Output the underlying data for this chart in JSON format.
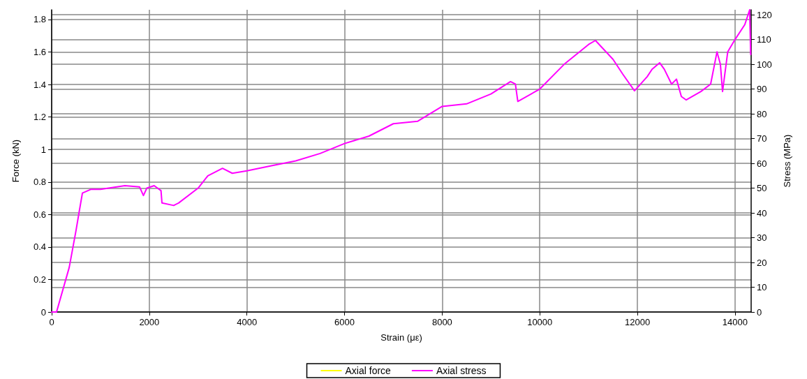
{
  "chart_data": {
    "type": "line",
    "xlabel": "Strain (με)",
    "ylabel": "Force (kN)",
    "y2label": "Stress (MPa)",
    "xlim": [
      0,
      14330
    ],
    "xticks": [
      0,
      2000,
      4000,
      6000,
      8000,
      10000,
      12000,
      14000
    ],
    "ylim": [
      0,
      1.86
    ],
    "yticks": [
      0,
      0.2,
      0.4,
      0.6,
      0.8,
      1,
      1.2,
      1.4,
      1.6,
      1.8
    ],
    "y2lim": [
      0,
      122
    ],
    "y2ticks": [
      0,
      10,
      20,
      30,
      40,
      50,
      60,
      70,
      80,
      90,
      100,
      110,
      120
    ],
    "grid": true,
    "legend": "bottom",
    "marker": "none",
    "line_style": "solid",
    "series": [
      {
        "name": "Axial force",
        "color": "#ffff00"
      },
      {
        "name": "Axial stress",
        "color": "#ff00ff",
        "axis": "y2",
        "x": [
          0,
          100,
          360,
          500,
          560,
          630,
          800,
          1000,
          1500,
          1800,
          1880,
          1950,
          2100,
          2240,
          2260,
          2500,
          2600,
          3000,
          3200,
          3500,
          3700,
          4000,
          4500,
          5000,
          5500,
          6000,
          6500,
          7000,
          7500,
          8000,
          8500,
          9000,
          9400,
          9500,
          9550,
          10000,
          10500,
          11000,
          11140,
          11500,
          11700,
          11940,
          12200,
          12300,
          12455,
          12550,
          12700,
          12800,
          12900,
          13000,
          13300,
          13500,
          13630,
          13700,
          13744,
          13850,
          14000,
          14200,
          14300,
          14320
        ],
        "values": [
          0,
          0,
          18,
          33,
          40,
          48,
          49.5,
          49.5,
          51,
          50.5,
          47,
          50,
          51,
          49,
          44,
          43,
          44,
          50,
          55,
          58,
          56,
          57,
          59,
          61,
          64,
          68,
          71,
          76,
          77,
          83,
          84,
          88,
          93,
          92,
          85,
          90,
          100,
          108,
          109.6,
          102,
          96,
          89.3,
          95,
          98,
          100.6,
          98,
          92,
          94,
          87,
          85.6,
          89,
          92,
          105,
          100,
          89,
          105,
          110,
          116,
          122,
          104
        ]
      }
    ]
  }
}
